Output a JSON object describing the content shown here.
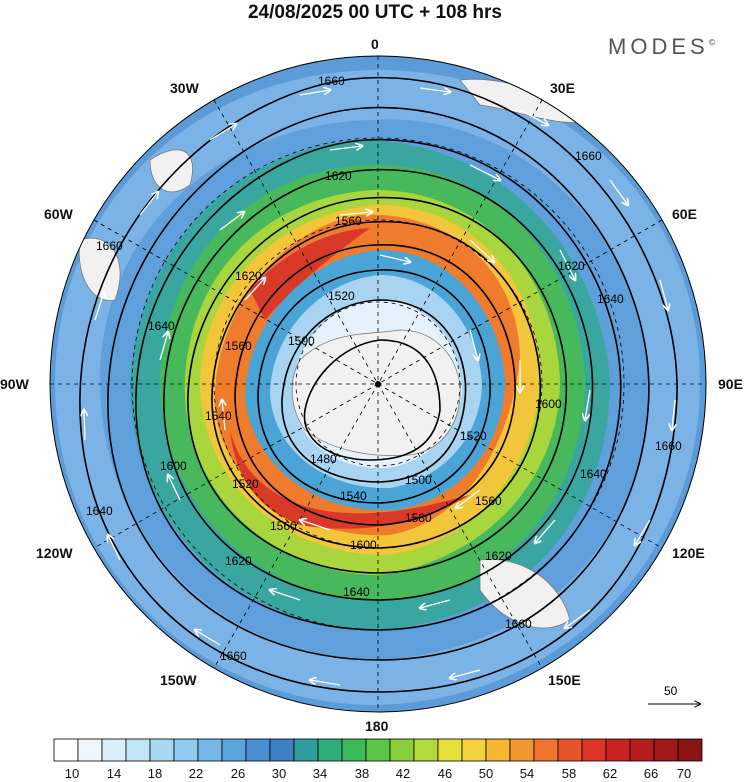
{
  "header": {
    "title": "24/08/2025  00 UTC  + 108 hrs",
    "brand": "MODES",
    "brand_mark": "©"
  },
  "longitude_labels": {
    "lon_0": "0",
    "lon_30e": "30E",
    "lon_60e": "60E",
    "lon_90e": "90E",
    "lon_120e": "120E",
    "lon_150e": "150E",
    "lon_180": "180",
    "lon_150w": "150W",
    "lon_120w": "120W",
    "lon_90w": "90W",
    "lon_60w": "60W",
    "lon_30w": "30W"
  },
  "contours": {
    "labels": [
      "1480",
      "1500",
      "1520",
      "1540",
      "1560",
      "1580",
      "1600",
      "1620",
      "1640",
      "1660"
    ]
  },
  "reference_vector": {
    "label": "50"
  },
  "colorbar": {
    "tick_labels": [
      "10",
      "14",
      "18",
      "22",
      "26",
      "30",
      "34",
      "38",
      "42",
      "46",
      "50",
      "54",
      "58",
      "62",
      "66",
      "70"
    ],
    "colors": [
      "#ffffff",
      "#eef7fd",
      "#d9effa",
      "#c2e4f7",
      "#a9d8f3",
      "#8fcbee",
      "#73b8e6",
      "#5aa4dd",
      "#4a8fd3",
      "#3d7fc4",
      "#2f9e9e",
      "#2fae7b",
      "#3dbb5a",
      "#5cc543",
      "#86cf3a",
      "#b4d93a",
      "#e2e23a",
      "#f6d23a",
      "#f7b536",
      "#f59532",
      "#f0742d",
      "#e9532a",
      "#de3527",
      "#cc2222",
      "#b81d1d",
      "#a31818",
      "#8c1414"
    ],
    "title": ""
  }
}
